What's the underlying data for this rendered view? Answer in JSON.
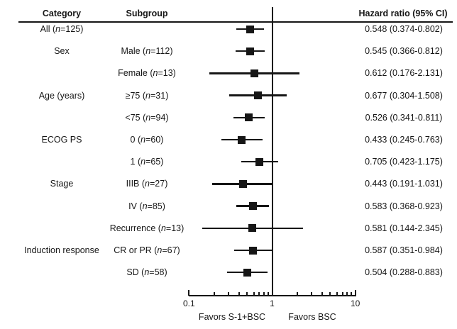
{
  "figure": {
    "headers": {
      "category": "Category",
      "subgroup": "Subgroup",
      "hazard_ratio": "Hazard ratio (95% CI)"
    },
    "axis_footer": {
      "favors_left": "Favors S-1+BSC",
      "favors_right": "Favors BSC"
    }
  },
  "chart_data": {
    "type": "scatter",
    "subtype": "forest-plot",
    "scale": "log10",
    "xlim": [
      0.1,
      10
    ],
    "x_major_ticks": [
      0.1,
      1,
      10
    ],
    "x_major_tick_labels": [
      "0.1",
      "1",
      "10"
    ],
    "x_minor_ticks": [
      0.2,
      0.3,
      0.4,
      0.5,
      0.6,
      0.7,
      0.8,
      0.9,
      2,
      3,
      4,
      5,
      6,
      7,
      8,
      9
    ],
    "reference_line": 1,
    "grid": false,
    "columns": [
      "Category",
      "Subgroup",
      "Hazard ratio (95% CI)"
    ],
    "rows": [
      {
        "category": "All (n=125)",
        "subgroup": "",
        "hr": 0.548,
        "ci_low": 0.374,
        "ci_high": 0.802,
        "hr_text": "0.548 (0.374-0.802)"
      },
      {
        "category": "Sex",
        "subgroup": "Male (n=112)",
        "hr": 0.545,
        "ci_low": 0.366,
        "ci_high": 0.812,
        "hr_text": "0.545 (0.366-0.812)"
      },
      {
        "category": "",
        "subgroup": "Female (n=13)",
        "hr": 0.612,
        "ci_low": 0.176,
        "ci_high": 2.131,
        "hr_text": "0.612 (0.176-2.131)"
      },
      {
        "category": "Age (years)",
        "subgroup": "≥75 (n=31)",
        "hr": 0.677,
        "ci_low": 0.304,
        "ci_high": 1.508,
        "hr_text": "0.677 (0.304-1.508)"
      },
      {
        "category": "",
        "subgroup": "<75 (n=94)",
        "hr": 0.526,
        "ci_low": 0.341,
        "ci_high": 0.811,
        "hr_text": "0.526 (0.341-0.811)"
      },
      {
        "category": "ECOG PS",
        "subgroup": "0 (n=60)",
        "hr": 0.433,
        "ci_low": 0.245,
        "ci_high": 0.763,
        "hr_text": "0.433 (0.245-0.763)"
      },
      {
        "category": "",
        "subgroup": "1 (n=65)",
        "hr": 0.705,
        "ci_low": 0.423,
        "ci_high": 1.175,
        "hr_text": "0.705 (0.423-1.175)"
      },
      {
        "category": "Stage",
        "subgroup": "IIIB (n=27)",
        "hr": 0.443,
        "ci_low": 0.191,
        "ci_high": 1.031,
        "hr_text": "0.443 (0.191-1.031)"
      },
      {
        "category": "",
        "subgroup": "IV (n=85)",
        "hr": 0.583,
        "ci_low": 0.368,
        "ci_high": 0.923,
        "hr_text": "0.583 (0.368-0.923)"
      },
      {
        "category": "",
        "subgroup": "Recurrence (n=13)",
        "hr": 0.581,
        "ci_low": 0.144,
        "ci_high": 2.345,
        "hr_text": "0.581 (0.144-2.345)"
      },
      {
        "category": "Induction response",
        "subgroup": "CR or PR (n=67)",
        "hr": 0.587,
        "ci_low": 0.351,
        "ci_high": 0.984,
        "hr_text": "0.587 (0.351-0.984)"
      },
      {
        "category": "",
        "subgroup": "SD (n=58)",
        "hr": 0.504,
        "ci_low": 0.288,
        "ci_high": 0.883,
        "hr_text": "0.504 (0.288-0.883)"
      }
    ]
  },
  "colors": {
    "ink": "#161616",
    "background": "#ffffff"
  }
}
